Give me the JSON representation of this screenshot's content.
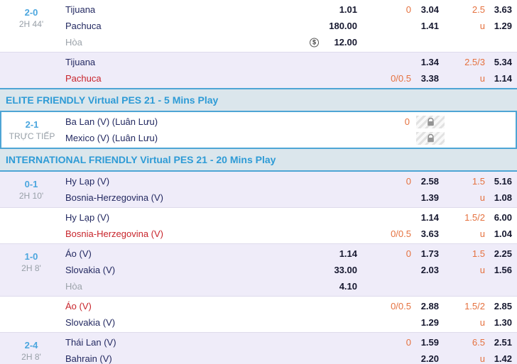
{
  "colors": {
    "accent_blue": "#4EA5D5",
    "header_bg": "#DBE6EC",
    "header_text": "#2E9BD6",
    "lavender_row_bg": "#EFECF9",
    "score_blue": "#4BA6DE",
    "muted_gray": "#98A0A8",
    "team_navy": "#232961",
    "team_red": "#C8242B",
    "odds_dark": "#16182F",
    "line_orange": "#E5713F"
  },
  "icons": {
    "cash": "$",
    "lock": "padlock-glyph"
  },
  "sections": [
    {
      "kind": "block",
      "shade": "white",
      "score": "2-0",
      "time": "2H 44'",
      "rows": [
        {
          "team": "Tijuana",
          "x2": "1.01",
          "hdpLine": "0",
          "hdpOdds": "3.04",
          "ouLine": "2.5",
          "ouOdds": "3.63"
        },
        {
          "team": "Pachuca",
          "x2": "180.00",
          "hdpOdds": "1.41",
          "ouLine": "u",
          "ouOdds": "1.29"
        },
        {
          "team": "Hòa",
          "gray": true,
          "x2": "12.00",
          "cashIcon": true
        }
      ]
    },
    {
      "kind": "block",
      "shade": "lavender",
      "rows": [
        {
          "team": "Tijuana",
          "hdpOdds": "1.34",
          "ouLine": "2.5/3",
          "ouOdds": "5.34"
        },
        {
          "team": "Pachuca",
          "red": true,
          "hdpLine": "0/0.5",
          "hdpOdds": "3.38",
          "ouLine": "u",
          "ouOdds": "1.14"
        }
      ]
    },
    {
      "kind": "header",
      "label": "ELITE FRIENDLY Virtual PES 21 - 5 Mins Play"
    },
    {
      "kind": "block",
      "shade": "white",
      "live": true,
      "score": "2-1",
      "time": "TRỰC TIẾP",
      "rows": [
        {
          "team": "Ba Lan (V) (Luân Lưu)",
          "hdpLine": "0",
          "lock": true
        },
        {
          "team": "Mexico (V) (Luân Lưu)",
          "lock": true
        }
      ]
    },
    {
      "kind": "header",
      "label": "INTERNATIONAL FRIENDLY Virtual PES 21 - 20 Mins Play"
    },
    {
      "kind": "block",
      "shade": "lavender",
      "score": "0-1",
      "time": "2H 10'",
      "rows": [
        {
          "team": "Hy Lạp (V)",
          "hdpLine": "0",
          "hdpOdds": "2.58",
          "ouLine": "1.5",
          "ouOdds": "5.16"
        },
        {
          "team": "Bosnia-Herzegovina (V)",
          "hdpOdds": "1.39",
          "ouLine": "u",
          "ouOdds": "1.08"
        }
      ]
    },
    {
      "kind": "block",
      "shade": "white",
      "rows": [
        {
          "team": "Hy Lạp (V)",
          "hdpOdds": "1.14",
          "ouLine": "1.5/2",
          "ouOdds": "6.00"
        },
        {
          "team": "Bosnia-Herzegovina (V)",
          "red": true,
          "hdpLine": "0/0.5",
          "hdpOdds": "3.63",
          "ouLine": "u",
          "ouOdds": "1.04"
        }
      ]
    },
    {
      "kind": "block",
      "shade": "lavender",
      "score": "1-0",
      "time": "2H 8'",
      "rows": [
        {
          "team": "Áo (V)",
          "x2": "1.14",
          "hdpLine": "0",
          "hdpOdds": "1.73",
          "ouLine": "1.5",
          "ouOdds": "2.25"
        },
        {
          "team": "Slovakia (V)",
          "x2": "33.00",
          "hdpOdds": "2.03",
          "ouLine": "u",
          "ouOdds": "1.56"
        },
        {
          "team": "Hòa",
          "gray": true,
          "x2": "4.10"
        }
      ]
    },
    {
      "kind": "block",
      "shade": "white",
      "rows": [
        {
          "team": "Áo (V)",
          "red": true,
          "hdpLine": "0/0.5",
          "hdpOdds": "2.88",
          "ouLine": "1.5/2",
          "ouOdds": "2.85"
        },
        {
          "team": "Slovakia (V)",
          "hdpOdds": "1.29",
          "ouLine": "u",
          "ouOdds": "1.30"
        }
      ]
    },
    {
      "kind": "block",
      "shade": "lavender",
      "score": "2-4",
      "time": "2H 8'",
      "rows": [
        {
          "team": "Thái Lan (V)",
          "hdpLine": "0",
          "hdpOdds": "1.59",
          "ouLine": "6.5",
          "ouOdds": "2.51"
        },
        {
          "team": "Bahrain (V)",
          "hdpOdds": "2.20",
          "ouLine": "u",
          "ouOdds": "1.42"
        }
      ]
    }
  ]
}
